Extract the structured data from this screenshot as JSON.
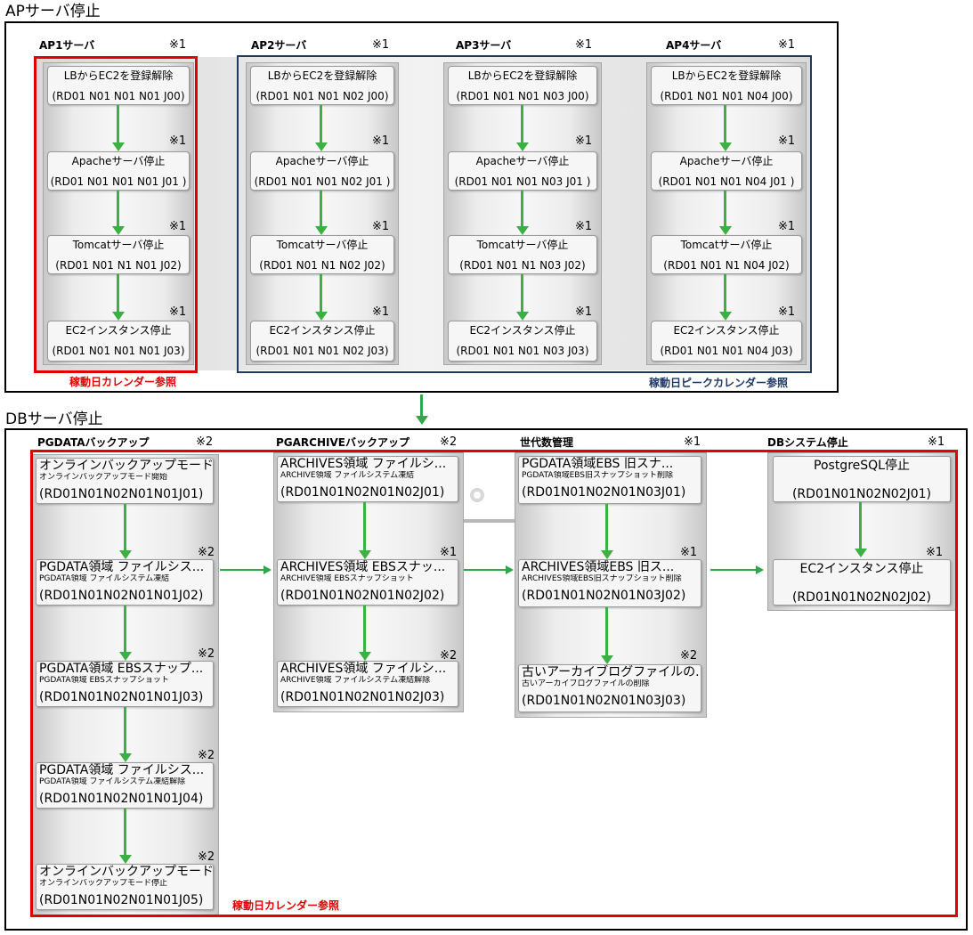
{
  "ap_section": {
    "title": "APサーバ停止",
    "calendar_red": "稼動日カレンダー参照",
    "calendar_blue": "稼動日ピークカレンダー参照",
    "servers": [
      {
        "name": "AP1サーバ",
        "mark": "※1",
        "jobs": [
          {
            "title": "LBからEC2を登録解除",
            "code": "(RD01 N01 N01 N01 J00)",
            "mark": ""
          },
          {
            "title": "Apacheサーバ停止",
            "code": "(RD01 N01 N01 N01 J01 )",
            "mark": "※1"
          },
          {
            "title": "Tomcatサーバ停止",
            "code": "(RD01 N01 N1 N01 J02)",
            "mark": "※1"
          },
          {
            "title": "EC2インスタンス停止",
            "code": "(RD01 N01 N01 N01 J03)",
            "mark": "※1"
          }
        ]
      },
      {
        "name": "AP2サーバ",
        "mark": "※1",
        "jobs": [
          {
            "title": "LBからEC2を登録解除",
            "code": "(RD01 N01 N01 N02 J00)",
            "mark": ""
          },
          {
            "title": "Apacheサーバ停止",
            "code": "(RD01 N01 N01 N02 J01 )",
            "mark": "※1"
          },
          {
            "title": "Tomcatサーバ停止",
            "code": "(RD01 N01 N1 N02 J02)",
            "mark": "※1"
          },
          {
            "title": "EC2インスタンス停止",
            "code": "(RD01 N01 N01 N02 J03)",
            "mark": "※1"
          }
        ]
      },
      {
        "name": "AP3サーバ",
        "mark": "※1",
        "jobs": [
          {
            "title": "LBからEC2を登録解除",
            "code": "(RD01 N01 N01 N03 J00)",
            "mark": ""
          },
          {
            "title": "Apacheサーバ停止",
            "code": "(RD01 N01 N01 N03 J01 )",
            "mark": "※1"
          },
          {
            "title": "Tomcatサーバ停止",
            "code": "(RD01 N01 N1 N03 J02)",
            "mark": "※1"
          },
          {
            "title": "EC2インスタンス停止",
            "code": "(RD01 N01 N01 N03 J03)",
            "mark": "※1"
          }
        ]
      },
      {
        "name": "AP4サーバ",
        "mark": "※1",
        "jobs": [
          {
            "title": "LBからEC2を登録解除",
            "code": "(RD01 N01 N01 N04 J00)",
            "mark": ""
          },
          {
            "title": "Apacheサーバ停止",
            "code": "(RD01 N01 N01 N04 J01 )",
            "mark": "※1"
          },
          {
            "title": "Tomcatサーバ停止",
            "code": "(RD01 N01 N1 N04 J02)",
            "mark": "※1"
          },
          {
            "title": "EC2インスタンス停止",
            "code": "(RD01 N01 N01 N04 J03)",
            "mark": "※1"
          }
        ]
      }
    ]
  },
  "db_section": {
    "title": "DBサーバ停止",
    "calendar_red": "稼動日カレンダー参照",
    "groups": [
      {
        "name": "PGDATAバックアップ",
        "mark": "※2",
        "jobs": [
          {
            "title": "オンラインバックアップモード...",
            "sub": "オンラインバックアップモード開始",
            "code": "(RD01N01N02N01N01J01)",
            "mark": ""
          },
          {
            "title": "PGDATA領域 ファイルシス...",
            "sub": "PGDATA領域 ファイルシステム凍結",
            "code": "(RD01N01N02N01N01J02)",
            "mark": "※2"
          },
          {
            "title": "PGDATA領域 EBSスナップ...",
            "sub": "PGDATA領域 EBSスナップショット",
            "code": "(RD01N01N02N01N01J03)",
            "mark": "※2"
          },
          {
            "title": "PGDATA領域 ファイルシス...",
            "sub": "PGDATA領域 ファイルシステム凍結解除",
            "code": "(RD01N01N02N01N01J04)",
            "mark": "※2"
          },
          {
            "title": "オンラインバックアップモード...",
            "sub": "オンラインバックアップモード停止",
            "code": "(RD01N01N02N01N01J05)",
            "mark": "※2"
          }
        ]
      },
      {
        "name": "PGARCHIVEバックアップ",
        "mark": "※2",
        "jobs": [
          {
            "title": "ARCHIVES領域 ファイルシ...",
            "sub": "ARCHIVE領域 ファイルシステム凍結",
            "code": "(RD01N01N02N01N02J01)",
            "mark": ""
          },
          {
            "title": "ARCHIVES領域 EBSスナッ...",
            "sub": "ARCHIVE領域 EBSスナップショット",
            "code": "(RD01N01N02N01N02J02)",
            "mark": "※1"
          },
          {
            "title": "ARCHIVES領域 ファイルシ...",
            "sub": "ARCHIVE領域 ファイルシステム凍結解除",
            "code": "(RD01N01N02N01N02J03)",
            "mark": "※2"
          }
        ]
      },
      {
        "name": "世代数管理",
        "mark": "※1",
        "jobs": [
          {
            "title": "PGDATA領域EBS 旧スナ...",
            "sub": "PGDATA領域EBS旧スナップショット削除",
            "code": "(RD01N01N02N01N03J01)",
            "mark": ""
          },
          {
            "title": "ARCHIVES領域EBS 旧ス...",
            "sub": "ARCHIVES領域EBS旧スナップショット削除",
            "code": "(RD01N01N02N01N03J02)",
            "mark": "※1"
          },
          {
            "title": "古いアーカイブログファイルの...",
            "sub": "古いアーカイブログファイルの削除",
            "code": "(RD01N01N02N01N03J03)",
            "mark": "※2"
          }
        ]
      },
      {
        "name": "DBシステム停止",
        "mark": "※1",
        "jobs": [
          {
            "title": "PostgreSQL停止",
            "sub": "",
            "code": "(RD01N01N02N02J01)",
            "mark": ""
          },
          {
            "title": "EC2インスタンス停止",
            "sub": "",
            "code": "(RD01N01N02N02J02)",
            "mark": "※1"
          }
        ]
      }
    ]
  },
  "colors": {
    "arrow_green": "#3cb043",
    "highlight_red": "#e00000",
    "highlight_blue": "#1f3864"
  }
}
